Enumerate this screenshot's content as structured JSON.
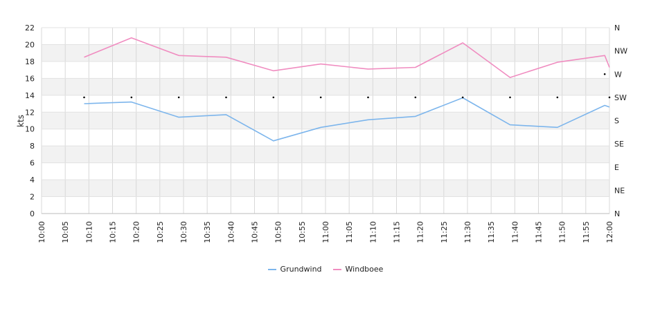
{
  "chart_data": {
    "type": "line",
    "ylabel": "kts",
    "ylim": [
      0,
      22
    ],
    "y_ticks": [
      "0",
      "2",
      "4",
      "6",
      "8",
      "10",
      "12",
      "14",
      "16",
      "18",
      "20",
      "22"
    ],
    "x_range": [
      "10:00",
      "12:00"
    ],
    "x_ticks": [
      "10:00",
      "10:05",
      "10:10",
      "10:15",
      "10:20",
      "10:25",
      "10:30",
      "10:35",
      "10:40",
      "10:45",
      "10:50",
      "10:55",
      "11:00",
      "11:05",
      "11:10",
      "11:15",
      "11:20",
      "11:25",
      "11:30",
      "11:35",
      "11:40",
      "11:45",
      "11:50",
      "11:55",
      "12:00"
    ],
    "direction_ticks": [
      "N",
      "NE",
      "E",
      "SE",
      "S",
      "SW",
      "W",
      "NW",
      "N"
    ],
    "grid": true,
    "legend_position": "bottom-center",
    "series": [
      {
        "name": "Grundwind",
        "color": "#7cb5ec",
        "points": [
          [
            "10:09",
            13.0
          ],
          [
            "10:19",
            13.2
          ],
          [
            "10:29",
            11.4
          ],
          [
            "10:39",
            11.7
          ],
          [
            "10:49",
            8.6
          ],
          [
            "10:59",
            10.2
          ],
          [
            "11:09",
            11.1
          ],
          [
            "11:19",
            11.5
          ],
          [
            "11:29",
            13.7
          ],
          [
            "11:39",
            10.5
          ],
          [
            "11:49",
            10.2
          ],
          [
            "11:59",
            12.8
          ],
          [
            "12:00",
            12.6
          ]
        ]
      },
      {
        "name": "Windboee",
        "color": "#f08cc0",
        "points": [
          [
            "10:09",
            18.5
          ],
          [
            "10:19",
            20.8
          ],
          [
            "10:29",
            18.7
          ],
          [
            "10:39",
            18.5
          ],
          [
            "10:49",
            16.9
          ],
          [
            "10:59",
            17.7
          ],
          [
            "11:09",
            17.1
          ],
          [
            "11:19",
            17.3
          ],
          [
            "11:29",
            20.2
          ],
          [
            "11:39",
            16.1
          ],
          [
            "11:49",
            17.9
          ],
          [
            "11:59",
            18.7
          ],
          [
            "12:00",
            17.3
          ]
        ]
      },
      {
        "name": "",
        "color": "#000000",
        "axis": "direction",
        "points": [
          [
            "10:09",
            "SW"
          ],
          [
            "10:19",
            "SW"
          ],
          [
            "10:29",
            "SW"
          ],
          [
            "10:39",
            "SW"
          ],
          [
            "10:49",
            "SW"
          ],
          [
            "10:59",
            "SW"
          ],
          [
            "11:09",
            "SW"
          ],
          [
            "11:19",
            "SW"
          ],
          [
            "11:29",
            "SW"
          ],
          [
            "11:39",
            "SW"
          ],
          [
            "11:49",
            "SW"
          ],
          [
            "11:59",
            "W"
          ],
          [
            "12:00",
            "SW"
          ]
        ]
      }
    ]
  }
}
